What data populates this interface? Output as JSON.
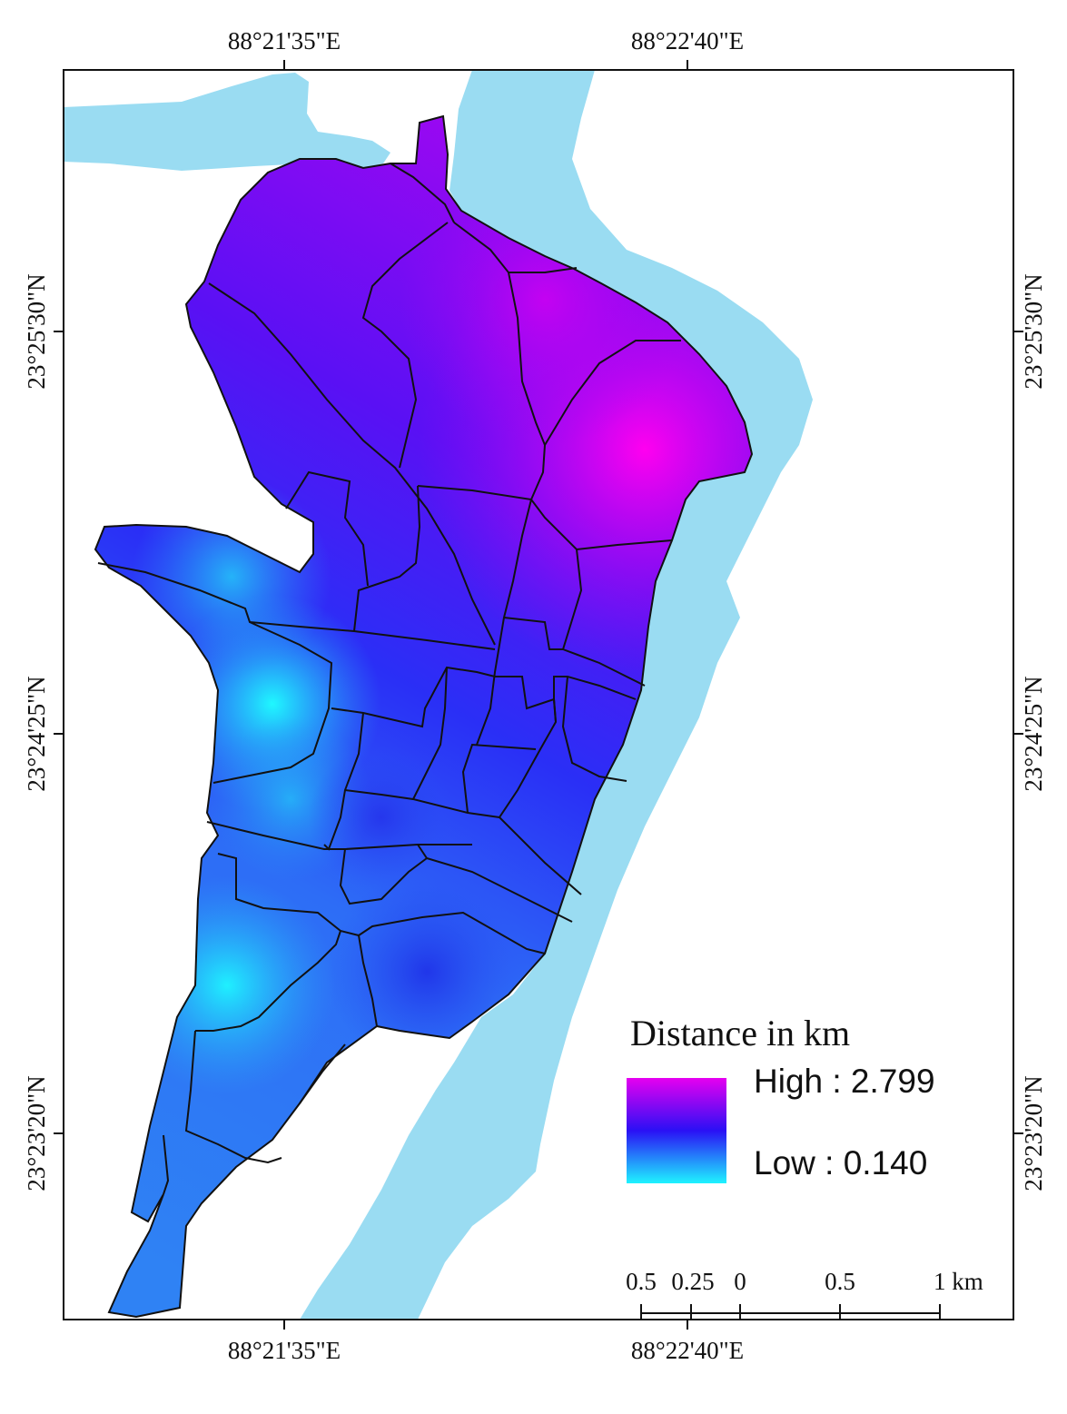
{
  "map": {
    "graticule": {
      "top_longitudes": [
        "88°21'35\"E",
        "88°22'40\"E"
      ],
      "bottom_longitudes": [
        "88°21'35\"E",
        "88°22'40\"E"
      ],
      "left_latitudes": [
        "23°25'30\"N",
        "23°24'25\"N",
        "23°23'20\"N"
      ],
      "right_latitudes": [
        "23°25'30\"N",
        "23°24'25\"N",
        "23°23'20\"N"
      ]
    },
    "legend": {
      "title": "Distance in km",
      "high_label": "High : 2.799",
      "low_label": "Low : 0.140",
      "high_value": 2.799,
      "low_value": 0.14,
      "colors": {
        "high": "#e600f0",
        "mid": "#2a10f5",
        "low": "#1ff3ff"
      }
    },
    "scale_bar": {
      "labels": [
        "0.5",
        "0.25",
        "0",
        "0.5",
        "1 km"
      ]
    },
    "colors": {
      "river": "#9adcf2",
      "frame": "#111111"
    }
  }
}
